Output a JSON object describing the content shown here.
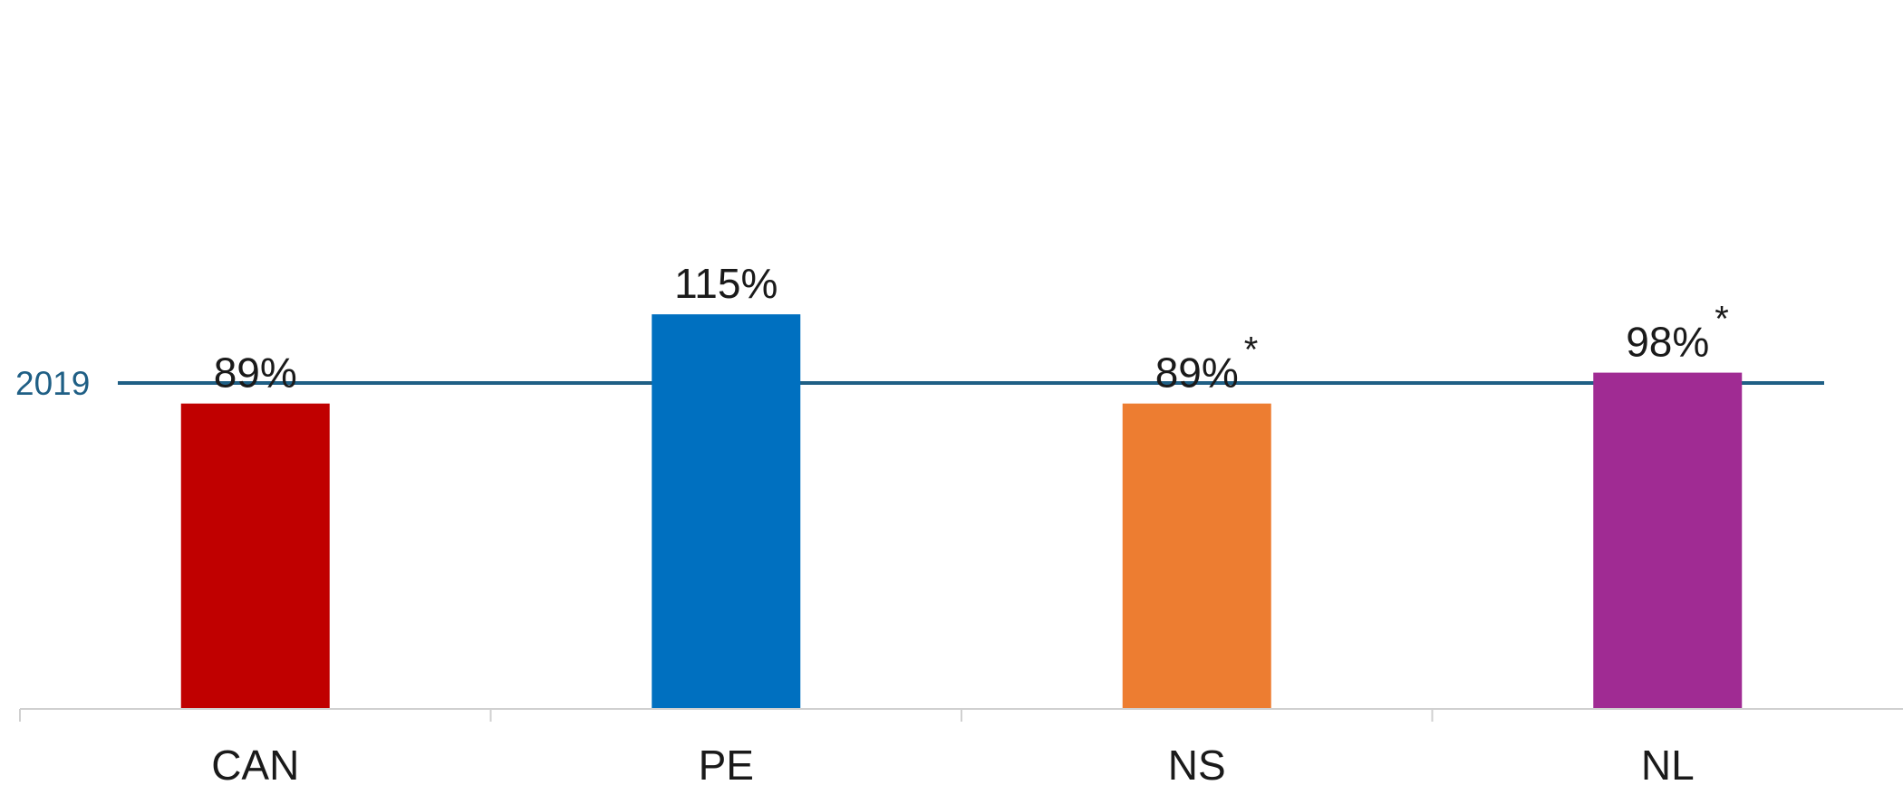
{
  "chart_data": {
    "type": "bar",
    "categories": [
      "CAN",
      "PE",
      "NS",
      "NL"
    ],
    "values": [
      89,
      115,
      89,
      98
    ],
    "value_labels": [
      "89%",
      "115%",
      "89%",
      "98%"
    ],
    "label_notes": [
      "",
      "",
      "*",
      "*"
    ],
    "colors": [
      "#C00000",
      "#0070C0",
      "#ED7D31",
      "#A02B93"
    ],
    "reference_line": {
      "label": "2019",
      "value": 95,
      "color": "#1F5F85"
    },
    "ylim": [
      0,
      120
    ],
    "title": "",
    "xlabel": "",
    "ylabel": "",
    "grid": false,
    "axis_color": "#D0D0D0"
  }
}
